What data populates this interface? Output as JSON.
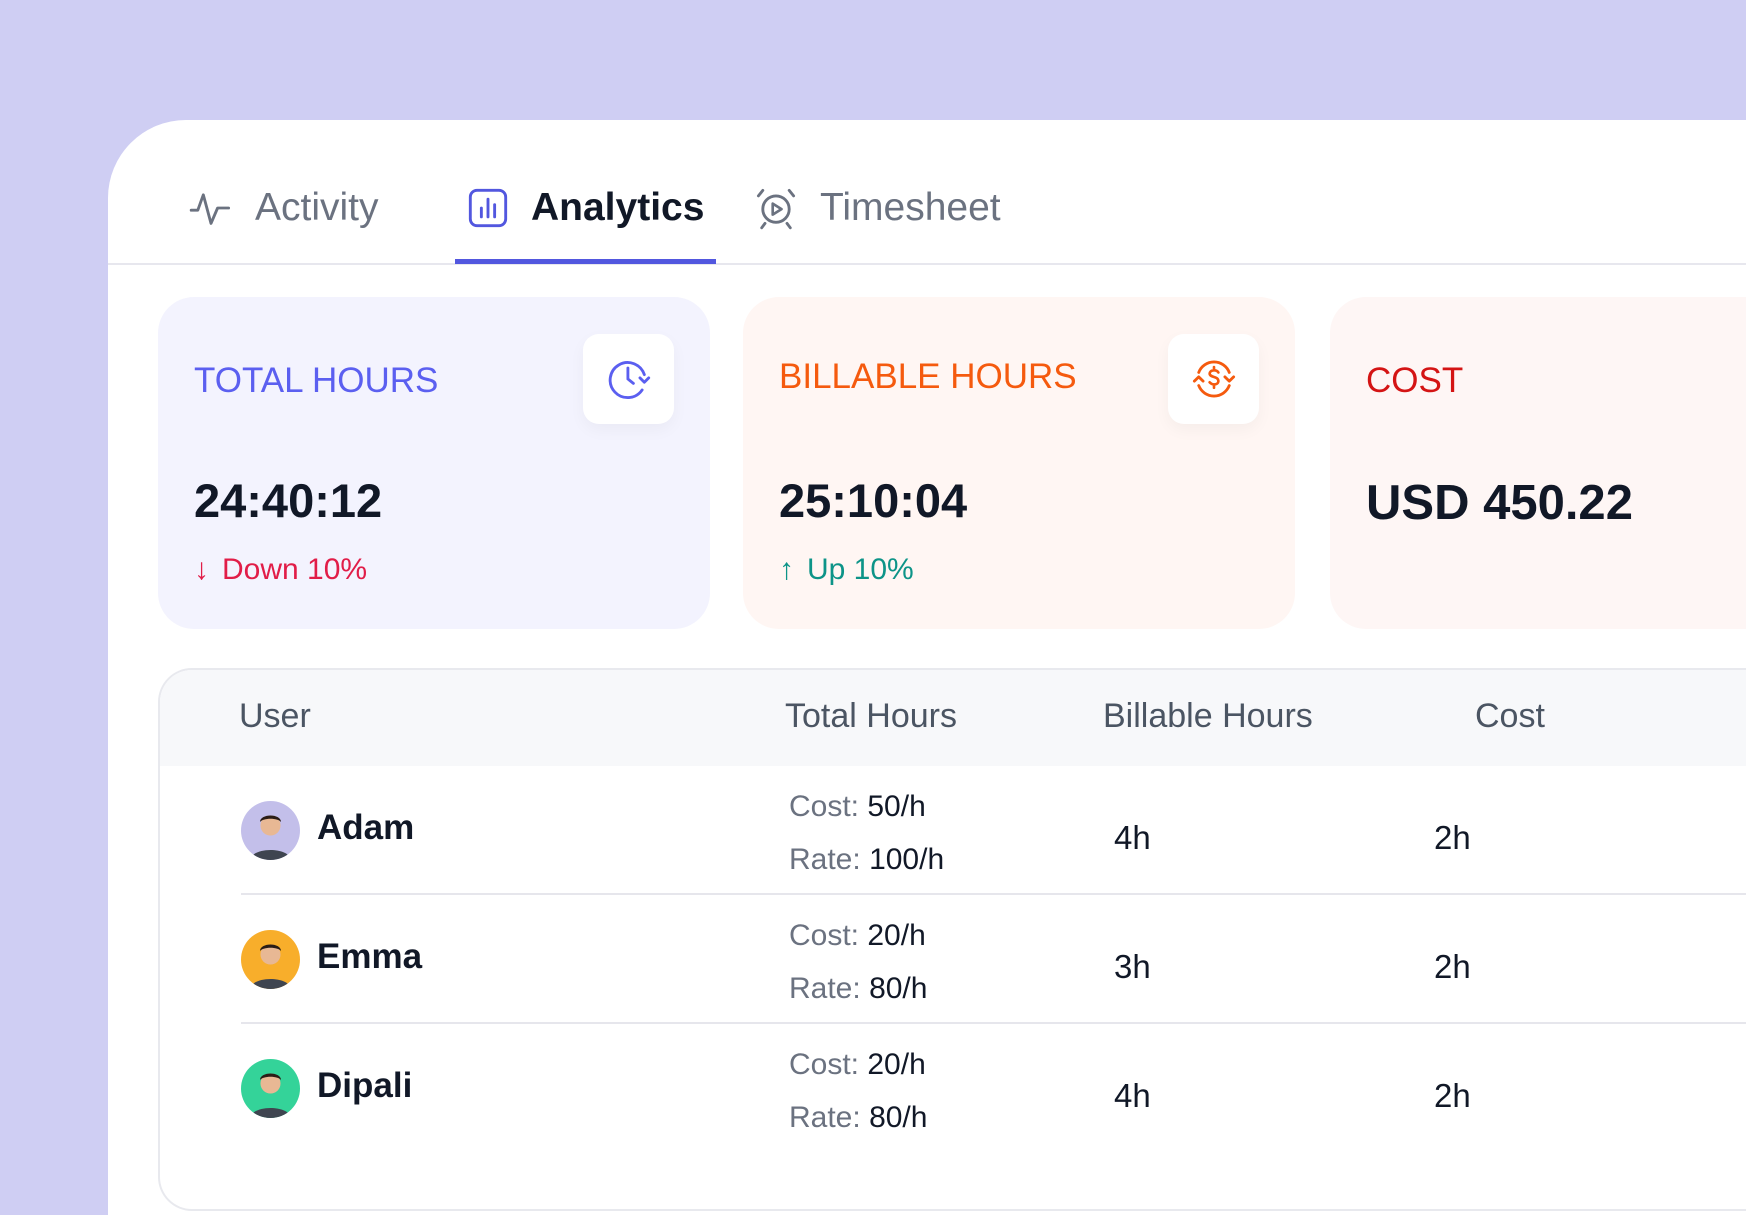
{
  "tabs": [
    {
      "label": "Activity",
      "icon": "activity-pulse-icon",
      "active": false
    },
    {
      "label": "Analytics",
      "icon": "bar-chart-icon",
      "active": true
    },
    {
      "label": "Timesheet",
      "icon": "alarm-clock-icon",
      "active": false
    }
  ],
  "cards": {
    "total_hours": {
      "label": "TOTAL HOURS",
      "value": "24:40:12",
      "delta": "Down 10%",
      "delta_arrow": "↓",
      "icon": "clock-refresh-icon",
      "label_color": "#5B5FF0",
      "delta_color": "#E11D48"
    },
    "billable_hours": {
      "label": "BILLABLE HOURS",
      "value": "25:10:04",
      "delta": "Up 10%",
      "delta_arrow": "↑",
      "icon": "dollar-refresh-icon",
      "label_color": "#F55A0E",
      "delta_color": "#0D9488"
    },
    "cost": {
      "label": "COST",
      "value": "USD 450.22",
      "label_color": "#D41414"
    }
  },
  "table": {
    "headers": {
      "user": "User",
      "total_hours": "Total Hours",
      "billable_hours": "Billable Hours",
      "cost": "Cost"
    },
    "cost_key": "Cost:",
    "rate_key": "Rate:",
    "rows": [
      {
        "name": "Adam",
        "cost": "50/h",
        "rate": "100/h",
        "billable": "4h",
        "cost_hours": "2h",
        "avatar_color": "#C3BFEA"
      },
      {
        "name": "Emma",
        "cost": "20/h",
        "rate": "80/h",
        "billable": "3h",
        "cost_hours": "2h",
        "avatar_color": "#F8AE2B"
      },
      {
        "name": "Dipali",
        "cost": "20/h",
        "rate": "80/h",
        "billable": "4h",
        "cost_hours": "2h",
        "avatar_color": "#34D399"
      }
    ]
  }
}
